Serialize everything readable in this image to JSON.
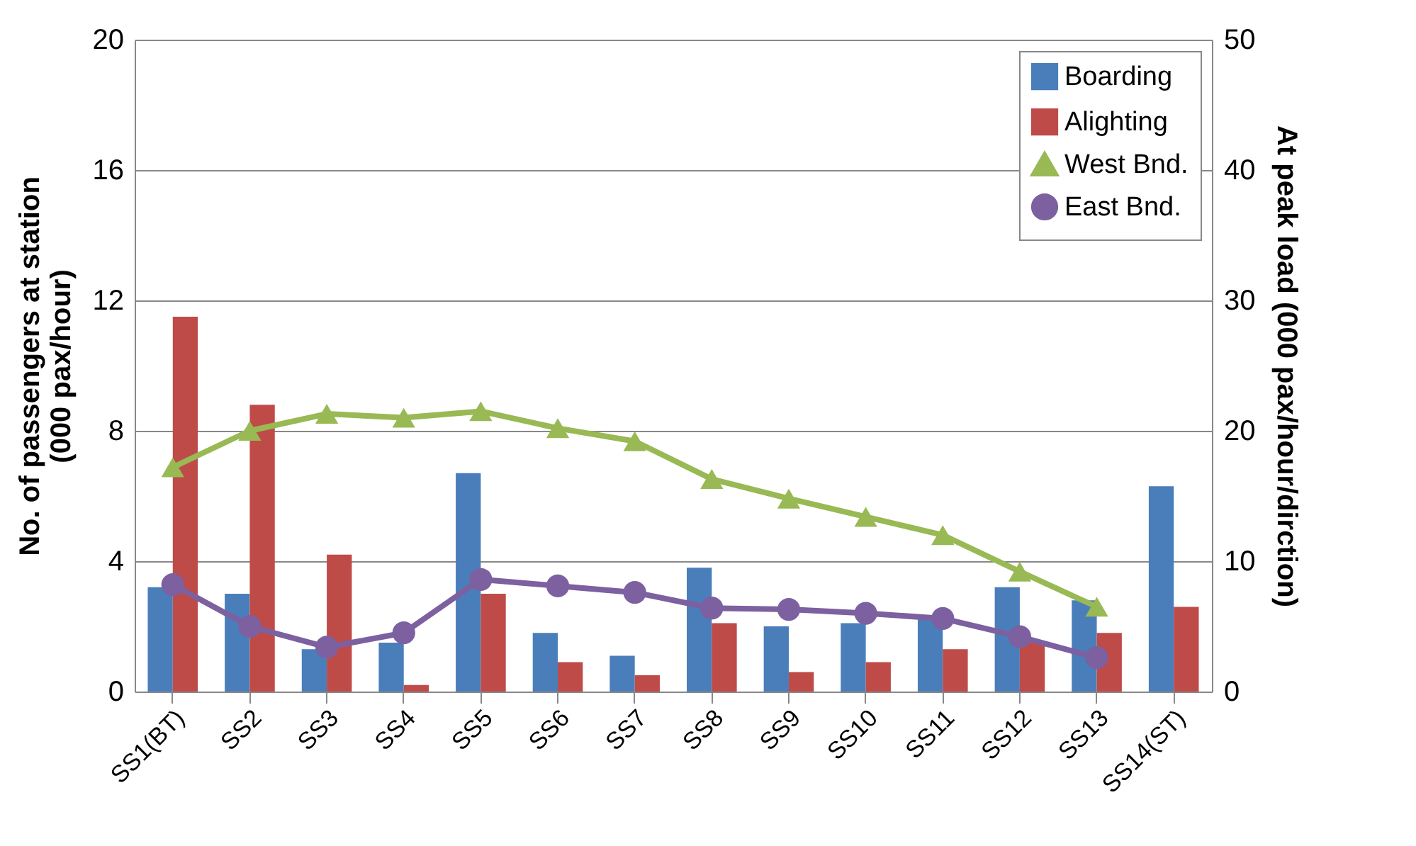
{
  "chart_data": {
    "type": "bar",
    "ylabel": "No. of passengers at station\n(000 pax/hour)",
    "y2label": "At peak load (000 pax/hour/dirction)",
    "categories": [
      "SS1(BT)",
      "SS2",
      "SS3",
      "SS4",
      "SS5",
      "SS6",
      "SS7",
      "SS8",
      "SS9",
      "SS10",
      "SS11",
      "SS12",
      "SS13",
      "SS14(ST)"
    ],
    "series": [
      {
        "name": "Boarding",
        "color": "#4a7ebb",
        "values": [
          3.2,
          3.0,
          1.3,
          1.5,
          6.7,
          1.8,
          1.1,
          3.8,
          2.0,
          2.1,
          2.3,
          3.2,
          2.8,
          6.3
        ]
      },
      {
        "name": "Alighting",
        "color": "#be4b48",
        "values": [
          11.5,
          8.8,
          4.2,
          0.2,
          3.0,
          0.9,
          0.5,
          2.1,
          0.6,
          0.9,
          1.3,
          1.5,
          1.8,
          2.6
        ]
      },
      {
        "name": "West Bnd.",
        "color": "#98b954",
        "type": "line",
        "axis": "y2",
        "marker": "triangle",
        "values": [
          17.2,
          20,
          21.3,
          21,
          21.5,
          20.2,
          19.2,
          16.3,
          14.8,
          13.4,
          12,
          9.2,
          6.5,
          null
        ]
      },
      {
        "name": "East Bnd.",
        "color": "#7d60a0",
        "type": "line",
        "axis": "y2",
        "marker": "circle",
        "values": [
          8.2,
          5.0,
          3.4,
          4.5,
          8.6,
          8.1,
          7.6,
          6.4,
          6.3,
          6.0,
          5.6,
          4.2,
          2.6,
          null
        ]
      }
    ],
    "ylim": [
      0,
      20
    ],
    "yticks": [
      0,
      4,
      8,
      12,
      16,
      20
    ],
    "y2lim": [
      0,
      50
    ],
    "y2ticks": [
      0,
      10,
      20,
      30,
      40,
      50
    ],
    "grid": "y",
    "legend": "top right"
  }
}
